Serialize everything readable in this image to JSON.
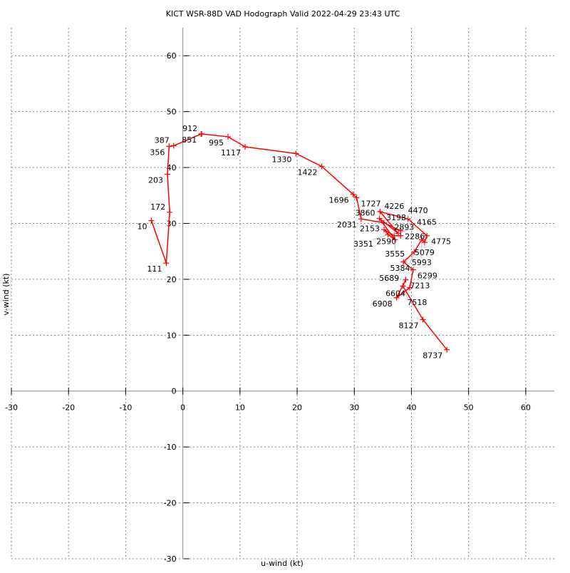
{
  "chart_data": {
    "type": "line",
    "title": "KICT WSR-88D VAD Hodograph Valid 2022-04-29 23:43 UTC",
    "xlabel": "u-wind (kt)",
    "ylabel": "v-wind (kt)",
    "xlim": [
      -30,
      65
    ],
    "ylim": [
      -30,
      65
    ],
    "xticks": [
      -30,
      -20,
      -10,
      0,
      10,
      20,
      30,
      40,
      50,
      60
    ],
    "yticks": [
      -30,
      -20,
      -10,
      0,
      10,
      20,
      30,
      40,
      50,
      60
    ],
    "grid": true,
    "line_color": "#ff0000",
    "points": [
      {
        "label": "10",
        "u": -5.5,
        "v": 30.5
      },
      {
        "label": "111",
        "u": -2.9,
        "v": 22.9
      },
      {
        "label": "172",
        "u": -2.3,
        "v": 32.0
      },
      {
        "label": "203",
        "u": -2.7,
        "v": 38.8
      },
      {
        "label": "356",
        "u": -2.4,
        "v": 43.8
      },
      {
        "label": "387",
        "u": -1.6,
        "v": 43.9
      },
      {
        "label": "851",
        "u": 3.2,
        "v": 46.0
      },
      {
        "label": "912",
        "u": 3.3,
        "v": 46.0
      },
      {
        "label": "995",
        "u": 7.9,
        "v": 45.5
      },
      {
        "label": "1117",
        "u": 10.9,
        "v": 43.7
      },
      {
        "label": "1330",
        "u": 19.8,
        "v": 42.5
      },
      {
        "label": "1422",
        "u": 24.3,
        "v": 40.2
      },
      {
        "label": "1696",
        "u": 29.8,
        "v": 35.2
      },
      {
        "label": "1727",
        "u": 30.4,
        "v": 34.6
      },
      {
        "label": "2031",
        "u": 31.2,
        "v": 30.8
      },
      {
        "label": "2153",
        "u": 35.2,
        "v": 30.1
      },
      {
        "label": "2286",
        "u": 38.1,
        "v": 28.7
      },
      {
        "label": "2590",
        "u": 38.1,
        "v": 27.8
      },
      {
        "label": "2893",
        "u": 37.0,
        "v": 27.8
      },
      {
        "label": "3198",
        "u": 35.2,
        "v": 28.9
      },
      {
        "label": "3351",
        "u": 35.9,
        "v": 28.0
      },
      {
        "label": "3555",
        "u": 37.1,
        "v": 27.1
      },
      {
        "label": "3860",
        "u": 34.4,
        "v": 30.9
      },
      {
        "label": "4165",
        "u": 37.7,
        "v": 28.2
      },
      {
        "label": "4226",
        "u": 34.5,
        "v": 32.1
      },
      {
        "label": "4470",
        "u": 39.4,
        "v": 30.8
      },
      {
        "label": "4775",
        "u": 42.7,
        "v": 27.8
      },
      {
        "label": "5079",
        "u": 42.3,
        "v": 26.6
      },
      {
        "label": "5993",
        "u": 41.8,
        "v": 27.1
      },
      {
        "label": "5384",
        "u": 40.5,
        "v": 24.9
      },
      {
        "label": "5689",
        "u": 38.6,
        "v": 23.1
      },
      {
        "label": "6299",
        "u": 40.3,
        "v": 21.7
      },
      {
        "label": "6604",
        "u": 39.7,
        "v": 18.5
      },
      {
        "label": "6908",
        "u": 37.4,
        "v": 16.7
      },
      {
        "label": "7213",
        "u": 39.0,
        "v": 19.9
      },
      {
        "label": "7518",
        "u": 38.5,
        "v": 18.8
      },
      {
        "label": "8127",
        "u": 42.0,
        "v": 12.8
      },
      {
        "label": "8737",
        "u": 46.2,
        "v": 7.4
      }
    ]
  }
}
